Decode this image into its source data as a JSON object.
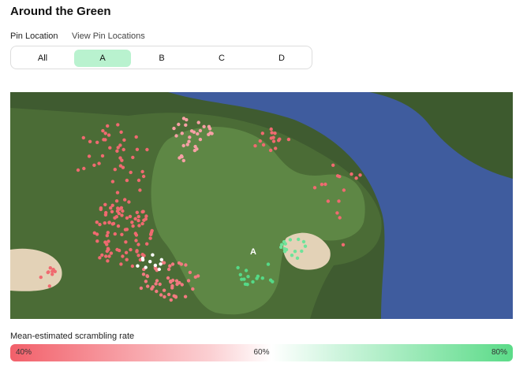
{
  "header": {
    "title": "Around the Green"
  },
  "pin_selector": {
    "label": "Pin Location",
    "link": "View Pin Locations",
    "options": [
      "All",
      "A",
      "B",
      "C",
      "D"
    ],
    "selected": "A"
  },
  "map": {
    "pin_label": "A"
  },
  "legend": {
    "title": "Mean-estimated scrambling rate",
    "ticks": [
      "40%",
      "60%",
      "80%"
    ]
  }
}
